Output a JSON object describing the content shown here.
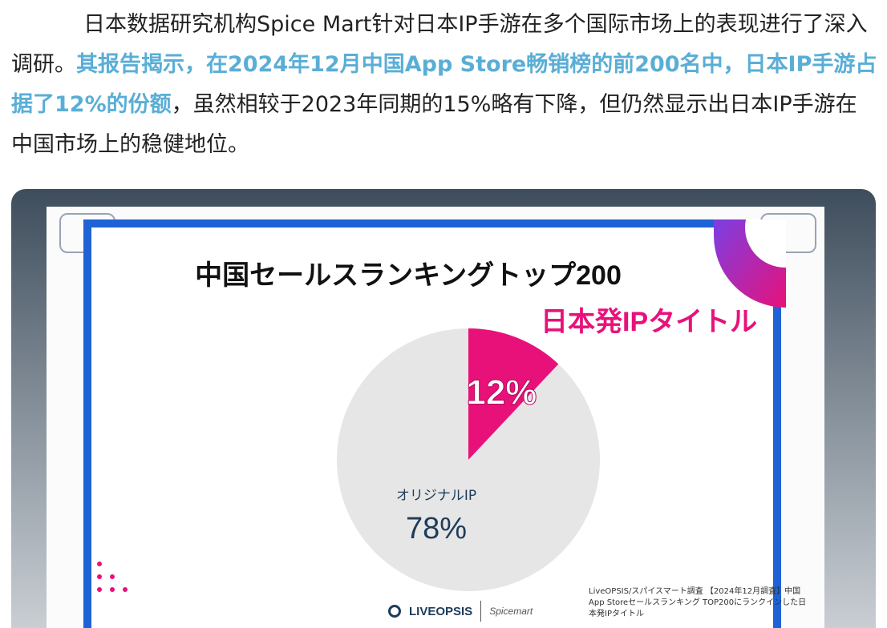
{
  "article": {
    "part1": "日本数据研究机构Spice Mart针对日本IP手游在多个国际市场上的表现进行了深入调研。",
    "highlight": "其报告揭示，在2024年12月中国App Store畅销榜的前200名中，日本IP手游占据了12%的份额",
    "part2": "，虽然相较于2023年同期的15%略有下降，但仍然显示出日本IP手游在中国市场上的稳健地位。"
  },
  "slide": {
    "title": "中国セールスランキングトップ200",
    "ip_label": "日本発IPタイトル",
    "source_note": "LiveOPSIS/スパイスマート調査 【2024年12月調査】中国App Storeセールスランキング TOP200にランクインした日本発IPタイトル",
    "logo_primary": "LIVEOPSIS",
    "logo_secondary": "Spicemart"
  },
  "colors": {
    "japan_ip": "#e8117a",
    "original_ip": "#e6e6e6",
    "frame_blue": "#1f62d6",
    "highlight": "#5aaed6"
  },
  "chart_data": {
    "type": "pie",
    "title": "中国セールスランキングトップ200",
    "slices": [
      {
        "name": "日本発IPタイトル",
        "value": 12,
        "label": "12%"
      },
      {
        "name": "オリジナルIP",
        "value": 78,
        "label": "78%"
      }
    ]
  }
}
